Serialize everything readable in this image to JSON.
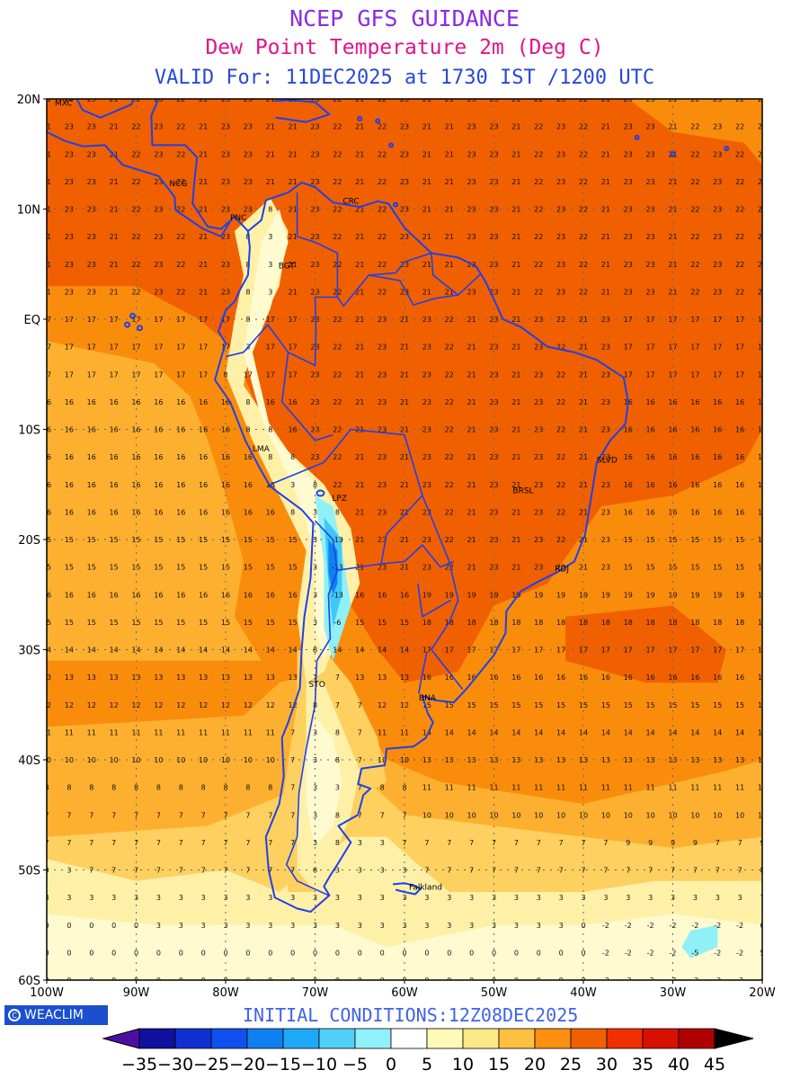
{
  "header": {
    "title": "NCEP GFS GUIDANCE",
    "subtitle": "Dew Point Temperature 2m (Deg C)",
    "valid": "VALID For: 11DEC2025 at 1730 IST /1200 UTC"
  },
  "colors": {
    "title": "#8a2be2",
    "subtitle": "#e0158a",
    "valid": "#2748d8",
    "init": "#3f63e6",
    "coast": "#2040e8",
    "warm_deep": "#f06000",
    "warm": "#fa8c0c",
    "mid": "#fdb030",
    "light": "#fdd060",
    "pale": "#fff0a8",
    "paler": "#fffad0",
    "cold1": "#8ff0f8",
    "cold2": "#40c8f8",
    "cold3": "#1080f0"
  },
  "axes": {
    "lat_labels": [
      "20N",
      "10N",
      "EQ",
      "10S",
      "20S",
      "30S",
      "40S",
      "50S",
      "60S"
    ],
    "lon_labels": [
      "100W",
      "90W",
      "80W",
      "70W",
      "60W",
      "50W",
      "40W",
      "30W",
      "20W"
    ]
  },
  "city_labels": [
    {
      "text": "MXC",
      "lon": -99.1,
      "lat": 19.4
    },
    {
      "text": "NCG",
      "lon": -86.3,
      "lat": 12.1
    },
    {
      "text": "PNC",
      "lon": -79.5,
      "lat": 9.0
    },
    {
      "text": "CRC",
      "lon": -66.9,
      "lat": 10.5
    },
    {
      "text": "BGT",
      "lon": -74.1,
      "lat": 4.6
    },
    {
      "text": "LMA",
      "lon": -77.0,
      "lat": -12.0
    },
    {
      "text": "LPZ",
      "lon": -68.1,
      "lat": -16.5
    },
    {
      "text": "BRSL",
      "lon": -47.9,
      "lat": -15.8
    },
    {
      "text": "SLVD",
      "lon": -38.5,
      "lat": -13.0
    },
    {
      "text": "RDJ",
      "lon": -43.2,
      "lat": -22.9
    },
    {
      "text": "STO",
      "lon": -70.7,
      "lat": -33.4
    },
    {
      "text": "BNA",
      "lon": -58.4,
      "lat": -34.6
    },
    {
      "text": "Falkland",
      "lon": -59.5,
      "lat": -51.8
    }
  ],
  "footer": {
    "initial_conditions": "INITIAL  CONDITIONS:12Z08DEC2025",
    "logo": "WEACLIM"
  },
  "colorbar": {
    "labels": [
      "-35",
      "-30",
      "-25",
      "-20",
      "-15",
      "-10",
      "-5",
      "0",
      "5",
      "10",
      "15",
      "20",
      "25",
      "30",
      "35",
      "40",
      "45"
    ],
    "colors": [
      "#1010a0",
      "#1030d0",
      "#1050f0",
      "#1080f0",
      "#20a8f8",
      "#50d0f8",
      "#90f0fc",
      "#ffffff",
      "#fffab8",
      "#fde888",
      "#fdc040",
      "#fc9010",
      "#f06000",
      "#f03000",
      "#d81000",
      "#b00000"
    ],
    "left_color": "#4a10a0",
    "right_color": "#000000"
  }
}
